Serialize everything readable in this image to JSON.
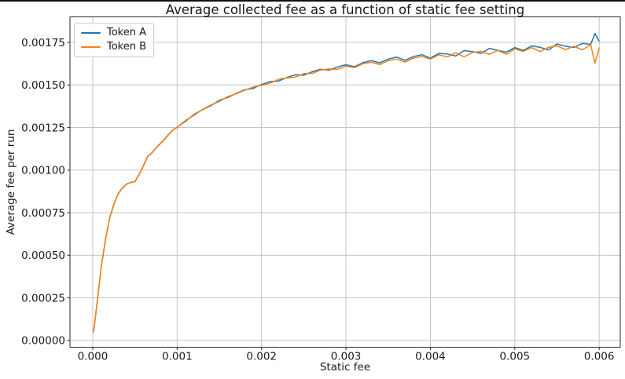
{
  "chart_data": {
    "type": "line",
    "title": "Average collected fee as a function of static fee setting",
    "xlabel": "Static fee",
    "ylabel": "Average fee per run",
    "xlim": [
      -0.00027,
      0.00625
    ],
    "ylim": [
      -4e-05,
      0.0019
    ],
    "grid": true,
    "legend_position": "upper left",
    "xticks": {
      "values": [
        0.0,
        0.001,
        0.002,
        0.003,
        0.004,
        0.005,
        0.006
      ],
      "labels": [
        "0.000",
        "0.001",
        "0.002",
        "0.003",
        "0.004",
        "0.005",
        "0.006"
      ]
    },
    "yticks": {
      "values": [
        0.0,
        0.00025,
        0.0005,
        0.00075,
        0.001,
        0.00125,
        0.0015,
        0.00175
      ],
      "labels": [
        "0.00000",
        "0.00025",
        "0.00050",
        "0.00075",
        "0.00100",
        "0.00125",
        "0.00150",
        "0.00175"
      ]
    },
    "x": [
      1e-05,
      5e-05,
      0.0001,
      0.00015,
      0.0002,
      0.00025,
      0.0003,
      0.00035,
      0.0004,
      0.00045,
      0.0005,
      0.00055,
      0.0006,
      0.00065,
      0.0007,
      0.00075,
      0.0008,
      0.00085,
      0.0009,
      0.00095,
      0.001,
      0.0011,
      0.0012,
      0.0013,
      0.0014,
      0.0015,
      0.0016,
      0.0017,
      0.0018,
      0.0019,
      0.002,
      0.0021,
      0.0022,
      0.0023,
      0.0024,
      0.0025,
      0.0026,
      0.0027,
      0.0028,
      0.0029,
      0.003,
      0.0031,
      0.0032,
      0.0033,
      0.0034,
      0.0035,
      0.0036,
      0.0037,
      0.0038,
      0.0039,
      0.004,
      0.0041,
      0.0042,
      0.0043,
      0.0044,
      0.0045,
      0.0046,
      0.0047,
      0.0048,
      0.0049,
      0.005,
      0.0051,
      0.0052,
      0.0053,
      0.0054,
      0.0055,
      0.0056,
      0.0057,
      0.0058,
      0.0059,
      0.00595,
      0.006
    ],
    "series": [
      {
        "name": "Token A",
        "color": "#1f77b4",
        "values": [
          5e-05,
          0.000215,
          0.00043,
          0.00059,
          0.00072,
          0.0008,
          0.00086,
          0.000896,
          0.000918,
          0.000928,
          0.000933,
          0.000976,
          0.001026,
          0.001081,
          0.001101,
          0.001131,
          0.001156,
          0.001181,
          0.001211,
          0.001236,
          0.001252,
          0.001287,
          0.001327,
          0.001355,
          0.001379,
          0.00141,
          0.001427,
          0.001451,
          0.001472,
          0.00148,
          0.001503,
          0.00152,
          0.001523,
          0.001544,
          0.00156,
          0.001557,
          0.001578,
          0.001592,
          0.001587,
          0.001606,
          0.001619,
          0.001607,
          0.001631,
          0.001643,
          0.00163,
          0.001652,
          0.001664,
          0.001645,
          0.001667,
          0.001678,
          0.001658,
          0.001685,
          0.001682,
          0.00167,
          0.001702,
          0.001696,
          0.001685,
          0.001715,
          0.001703,
          0.001693,
          0.00172,
          0.001703,
          0.00173,
          0.001721,
          0.001706,
          0.001741,
          0.001727,
          0.00172,
          0.001744,
          0.001739,
          0.001802,
          0.001758
        ]
      },
      {
        "name": "Token B",
        "color": "#ff7f0e",
        "values": [
          5e-05,
          0.000214,
          0.000428,
          0.000588,
          0.000718,
          0.000798,
          0.000858,
          0.000894,
          0.000917,
          0.000927,
          0.000932,
          0.000974,
          0.001024,
          0.001079,
          0.0011,
          0.00113,
          0.001155,
          0.00118,
          0.00121,
          0.001235,
          0.001251,
          0.001292,
          0.001322,
          0.001356,
          0.001383,
          0.001403,
          0.001432,
          0.001448,
          0.001469,
          0.001488,
          0.001498,
          0.00151,
          0.001533,
          0.001542,
          0.001546,
          0.001567,
          0.001568,
          0.001588,
          0.001594,
          0.001592,
          0.001611,
          0.001602,
          0.001625,
          0.001633,
          0.00162,
          0.001643,
          0.001652,
          0.001635,
          0.001658,
          0.001667,
          0.001652,
          0.001677,
          0.001665,
          0.001689,
          0.001666,
          0.001691,
          0.001698,
          0.00168,
          0.001703,
          0.00168,
          0.001712,
          0.001697,
          0.00172,
          0.001696,
          0.001721,
          0.00173,
          0.001708,
          0.001727,
          0.001707,
          0.001736,
          0.001628,
          0.001718
        ]
      }
    ]
  },
  "colors": {
    "grid": "#c4c4c4",
    "spine": "#2b2b2b",
    "text": "#1a1a1a",
    "background": "#ffffff"
  }
}
